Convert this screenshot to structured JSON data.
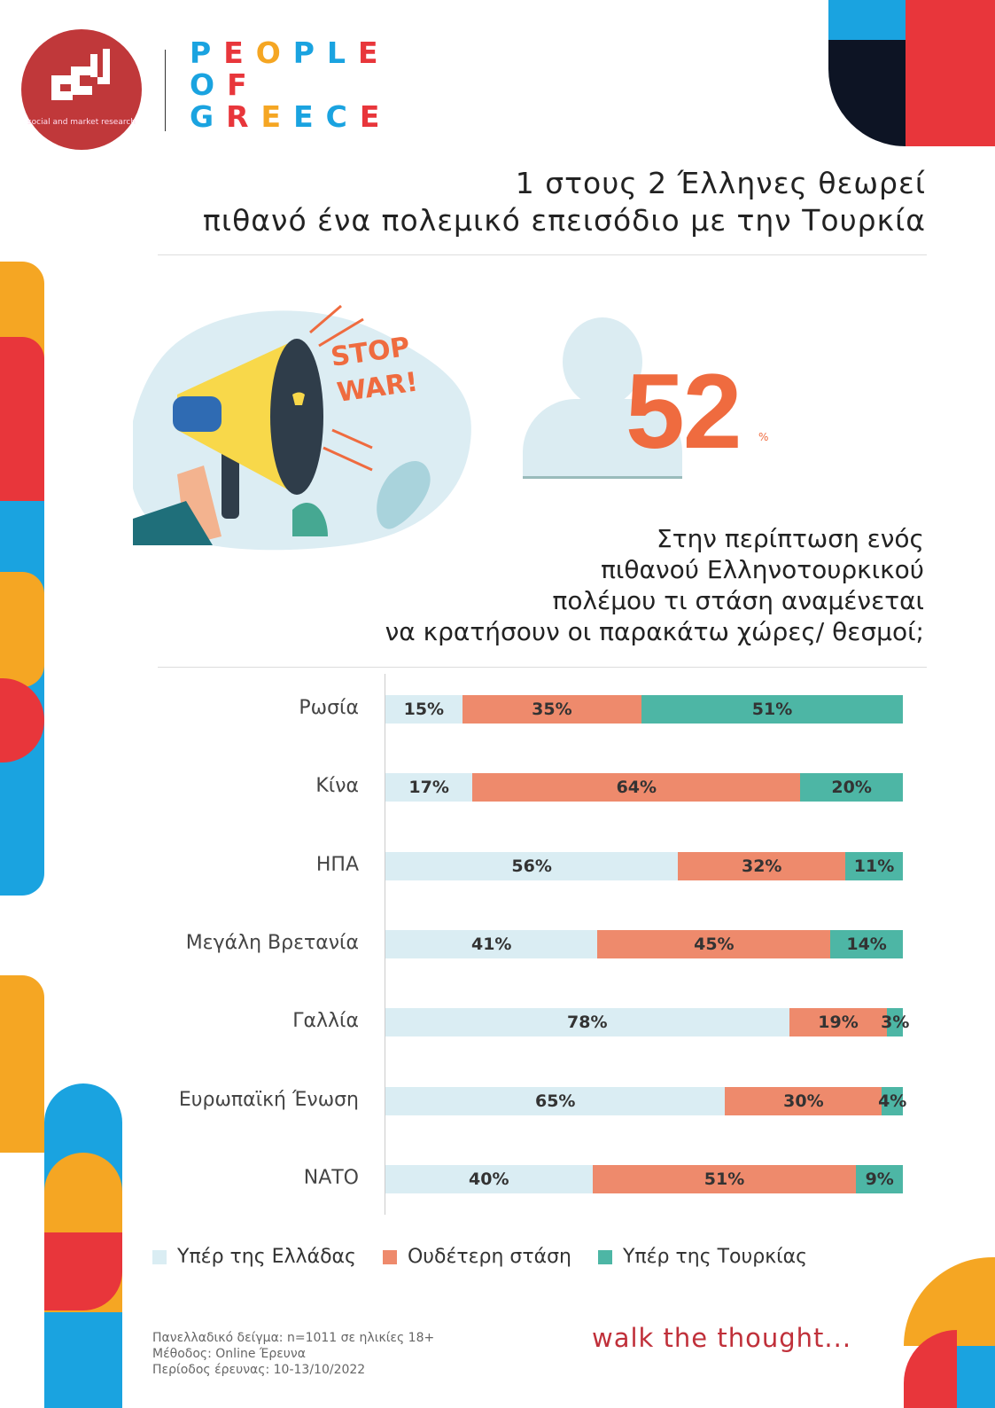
{
  "brand": {
    "logo_text": "social and market research",
    "partner": "PEOPLE OF GREECE",
    "tagline": "walk the thought..."
  },
  "headline": {
    "line1": "1 στους 2 Έλληνες θεωρεί",
    "line2": "πιθανό ένα πολεμικό επεισόδιο με την Τουρκία"
  },
  "illustration": {
    "text1": "STOP",
    "text2": "WAR!"
  },
  "stat": {
    "value": "52",
    "unit": "%"
  },
  "question": {
    "line1": "Στην περίπτωση ενός",
    "line2": "πιθανού Ελληνοτουρκικού",
    "line3": "πολέμου τι στάση αναμένεται",
    "line4": "να κρατήσουν οι παρακάτω χώρες/ θεσμοί;"
  },
  "colors": {
    "greece": "#daedf3",
    "neutral": "#ee8a6c",
    "turkey": "#4db6a5",
    "accent": "#ef6b3f"
  },
  "chart_data": {
    "type": "bar",
    "orientation": "horizontal",
    "stacked": true,
    "title": "Στην περίπτωση ενός πιθανού Ελληνοτουρκικού πολέμου τι στάση αναμένεται να κρατήσουν οι παρακάτω χώρες/ θεσμοί;",
    "categories": [
      "Ρωσία",
      "Κίνα",
      "ΗΠΑ",
      "Μεγάλη Βρετανία",
      "Γαλλία",
      "Ευρωπαϊκή Ένωση",
      "ΝΑΤΟ"
    ],
    "series": [
      {
        "name": "Υπέρ της Ελλάδας",
        "values": [
          15,
          17,
          56,
          41,
          78,
          65,
          40
        ]
      },
      {
        "name": "Ουδέτερη στάση",
        "values": [
          35,
          64,
          32,
          45,
          19,
          30,
          51
        ]
      },
      {
        "name": "Υπέρ της Τουρκίας",
        "values": [
          51,
          20,
          11,
          14,
          3,
          4,
          9
        ]
      }
    ],
    "unit": "%",
    "legend": "bottom"
  },
  "footer": {
    "line1": "Πανελλαδικό δείγμα: n=1011 σε ηλικίες 18+",
    "line2": "Μέθοδος: Online Έρευνα",
    "line3": "Περίοδος έρευνας: 10-13/10/2022"
  }
}
